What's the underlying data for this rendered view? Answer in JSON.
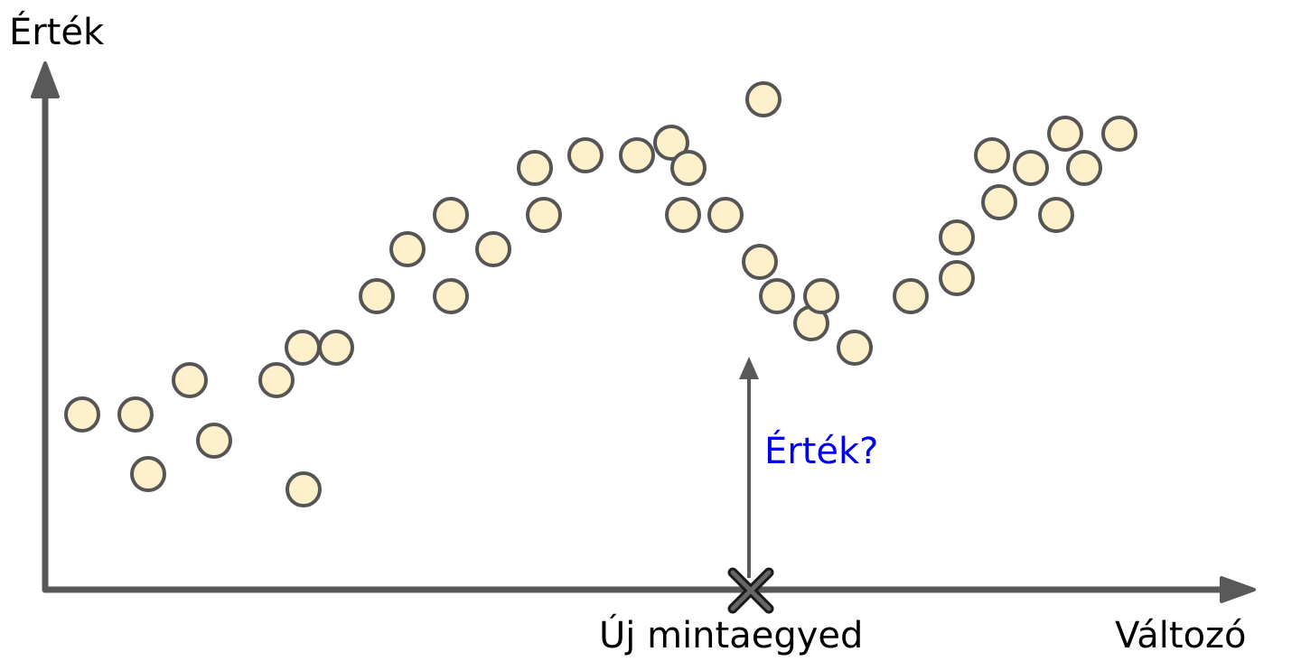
{
  "labels": {
    "y_axis": "Érték",
    "x_axis": "Változó",
    "new_instance": "Új mintaegyed",
    "query": "Érték?"
  },
  "colors": {
    "axis": "#595959",
    "point_fill": "#fff0cc",
    "point_stroke": "#555555",
    "query_text": "#0000ee",
    "cross": "#1a1a1a"
  },
  "icons": {
    "new_instance_marker": "cross-icon"
  }
}
